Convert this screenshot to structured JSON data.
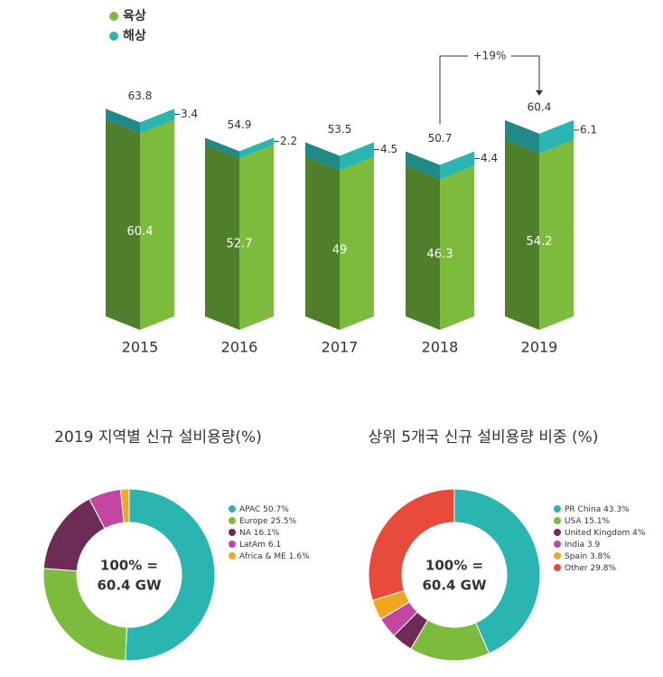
{
  "chart_data": [
    {
      "type": "bar",
      "stacked": true,
      "categories": [
        "2015",
        "2016",
        "2017",
        "2018",
        "2019"
      ],
      "series": [
        {
          "name": "육상",
          "color": "#7dbb3c",
          "side_color": "#4f7f2a",
          "values": [
            60.4,
            52.7,
            49,
            46.3,
            54.2
          ]
        },
        {
          "name": "해상",
          "color": "#2bb5b0",
          "side_color": "#1f8a86",
          "values": [
            3.4,
            2.2,
            4.5,
            4.4,
            6.1
          ]
        }
      ],
      "totals": [
        63.8,
        54.9,
        53.5,
        50.7,
        60.4
      ],
      "annotation": "+19%"
    },
    {
      "type": "donut",
      "title": "2019 지역별 신규 설비용량(%)",
      "center_label": [
        "100% =",
        "60.4 GW"
      ],
      "categories": [
        "APAC",
        "Europe",
        "NA",
        "LatAm",
        "Africa & ME"
      ],
      "values": [
        50.7,
        25.5,
        16.1,
        6.1,
        1.6
      ],
      "value_labels": [
        "50.7%",
        "25.5%",
        "16.1%",
        "6.1",
        "1.6%"
      ],
      "colors": [
        "#2bb5b0",
        "#7dbb3c",
        "#6d2b56",
        "#c446a0",
        "#f0a81e"
      ]
    },
    {
      "type": "donut",
      "title": "상위 5개국 신규 설비용량 비중 (%)",
      "center_label": [
        "100% =",
        "60.4 GW"
      ],
      "categories": [
        "PR China",
        "USA",
        "United Kingdom",
        "India",
        "Spain",
        "Other"
      ],
      "values": [
        43.3,
        15.1,
        4,
        3.9,
        3.8,
        29.8
      ],
      "value_labels": [
        "43.3%",
        "15.1%",
        "4%",
        "3.9",
        "3.8%",
        "29.8%"
      ],
      "colors": [
        "#2bb5b0",
        "#7dbb3c",
        "#6d2b56",
        "#c446a0",
        "#f0a81e",
        "#e84b3c"
      ]
    }
  ]
}
